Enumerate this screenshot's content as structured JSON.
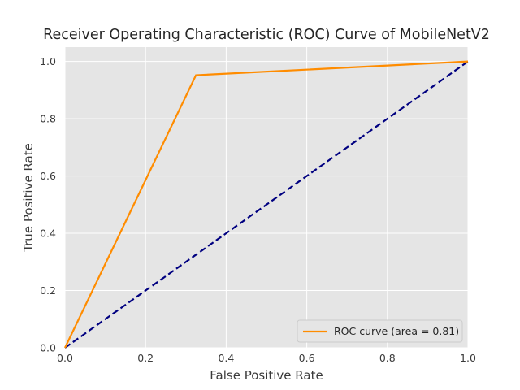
{
  "chart_data": {
    "type": "line",
    "title": "Receiver Operating Characteristic (ROC) Curve of MobileNetV2",
    "xlabel": "False Positive Rate",
    "ylabel": "True Positive Rate",
    "xlim": [
      0.0,
      1.0
    ],
    "ylim": [
      0.0,
      1.05
    ],
    "x_ticks": [
      0.0,
      0.2,
      0.4,
      0.6,
      0.8,
      1.0
    ],
    "x_tick_labels": [
      "0.0",
      "0.2",
      "0.4",
      "0.6",
      "0.8",
      "1.0"
    ],
    "y_ticks": [
      0.0,
      0.2,
      0.4,
      0.6,
      0.8,
      1.0
    ],
    "y_tick_labels": [
      "0.0",
      "0.2",
      "0.4",
      "0.6",
      "0.8",
      "1.0"
    ],
    "grid": true,
    "legend_position": "lower-right",
    "series": [
      {
        "name": "ROC curve (area = 0.81)",
        "color": "#ff8c00",
        "style": "solid",
        "points": [
          [
            0.0,
            0.0
          ],
          [
            0.325,
            0.952
          ],
          [
            1.0,
            1.0
          ]
        ]
      },
      {
        "color": "#000080",
        "style": "dashed",
        "points": [
          [
            0.0,
            0.0
          ],
          [
            1.0,
            1.0
          ]
        ]
      }
    ]
  },
  "colors": {
    "plot_background": "#e5e5e5",
    "grid": "#ffffff",
    "text": "#3a3a3a"
  }
}
